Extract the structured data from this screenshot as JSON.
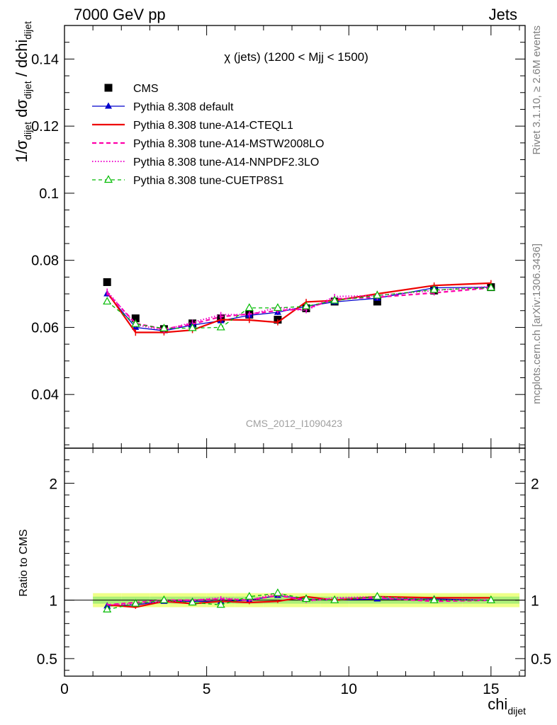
{
  "header": {
    "left": "7000 GeV pp",
    "right": "Jets"
  },
  "side": {
    "rivet": "Rivet 3.1.10, ≥ 2.6M events",
    "mcplots": "mcplots.cern.ch [arXiv:1306.3436]"
  },
  "analysis_id": "CMS_2012_I1090423",
  "chart_data": [
    {
      "type": "line",
      "title": "χ (jets) (1200 < Mjj < 1500)",
      "ylabel": "1/σdijet dσdijet / dchidijet",
      "ylim": [
        0.024,
        0.15
      ],
      "xlim": [
        0,
        16.2
      ],
      "x_ticks": [
        0,
        5,
        10,
        15
      ],
      "y_ticks": [
        0.04,
        0.06,
        0.08,
        0.1,
        0.12,
        0.14
      ],
      "y_tick_labels": [
        "0.04",
        "0.06",
        "0.08",
        "0.1",
        "0.12",
        "0.14"
      ],
      "legend_placement": "top-left",
      "x": [
        1.5,
        2.5,
        3.5,
        4.5,
        5.5,
        6.5,
        7.5,
        8.5,
        9.5,
        11,
        13,
        15
      ],
      "series": [
        {
          "name": "CMS",
          "style": "data",
          "color": "#000000",
          "values": [
            0.0735,
            0.0627,
            0.0595,
            0.0612,
            0.0627,
            0.0638,
            0.0623,
            0.0657,
            0.0677,
            0.0677,
            0.071,
            0.072
          ],
          "errors": [
            0.0007,
            0.0006,
            0.0006,
            0.0006,
            0.0006,
            0.0006,
            0.0006,
            0.0006,
            0.0006,
            0.0006,
            0.0006,
            0.0006
          ]
        },
        {
          "name": "Pythia 8.308 default",
          "style": "default",
          "color": "#0000cc",
          "values": [
            0.07,
            0.06,
            0.059,
            0.0607,
            0.062,
            0.0636,
            0.0645,
            0.0663,
            0.0676,
            0.0687,
            0.0718,
            0.072
          ],
          "errors": [
            0.0008,
            0.0008,
            0.0008,
            0.0008,
            0.0008,
            0.0008,
            0.0008,
            0.0008,
            0.0008,
            0.0008,
            0.0008,
            0.0008
          ]
        },
        {
          "name": "Pythia 8.308 tune-A14-CTEQL1",
          "style": "cteq",
          "color": "#ee0000",
          "values": [
            0.0705,
            0.0585,
            0.0585,
            0.0592,
            0.0623,
            0.0622,
            0.0615,
            0.0676,
            0.068,
            0.07,
            0.0725,
            0.0732
          ],
          "errors": [
            0.0009,
            0.001,
            0.0009,
            0.0009,
            0.0009,
            0.0009,
            0.0009,
            0.0009,
            0.0009,
            0.0009,
            0.0009,
            0.0009
          ]
        },
        {
          "name": "Pythia 8.308 tune-A14-MSTW2008LO",
          "style": "mstw",
          "color": "#ff00aa",
          "values": [
            0.0703,
            0.0612,
            0.0595,
            0.061,
            0.0632,
            0.064,
            0.065,
            0.0655,
            0.0685,
            0.069,
            0.0703,
            0.0718
          ],
          "errors": [
            0.0008,
            0.0008,
            0.0008,
            0.0008,
            0.0008,
            0.0008,
            0.0008,
            0.0008,
            0.0008,
            0.0008,
            0.0008,
            0.0008
          ]
        },
        {
          "name": "Pythia 8.308 tune-A14-NNPDF2.3LO",
          "style": "nnpdf",
          "color": "#ee00cc",
          "values": [
            0.0708,
            0.0608,
            0.0592,
            0.0615,
            0.0638,
            0.0638,
            0.066,
            0.065,
            0.0692,
            0.0695,
            0.071,
            0.0722
          ],
          "errors": [
            0.0008,
            0.0008,
            0.0008,
            0.0008,
            0.0008,
            0.0008,
            0.0008,
            0.0008,
            0.0008,
            0.0008,
            0.0008,
            0.0008
          ]
        },
        {
          "name": "Pythia 8.308 tune-CUETP8S1",
          "style": "cuetp",
          "color": "#00bb00",
          "values": [
            0.0677,
            0.061,
            0.0597,
            0.0598,
            0.06,
            0.0658,
            0.0658,
            0.0663,
            0.068,
            0.0695,
            0.0712,
            0.0718
          ],
          "errors": [
            0.0008,
            0.0008,
            0.0008,
            0.0008,
            0.0008,
            0.0008,
            0.0008,
            0.0008,
            0.0008,
            0.0008,
            0.0008,
            0.0008
          ]
        }
      ]
    },
    {
      "type": "line",
      "ylabel": "Ratio to CMS",
      "xlabel": "chidijet",
      "ylim": [
        0.35,
        2.3
      ],
      "xlim": [
        0,
        16.2
      ],
      "x_ticks": [
        0,
        5,
        10,
        15
      ],
      "x_tick_labels": [
        "0",
        "5",
        "10",
        "15"
      ],
      "y_ticks": [
        0.5,
        1,
        2
      ],
      "y_tick_labels": [
        "0.5",
        "1",
        "2"
      ],
      "band_bins": [
        1,
        2,
        3,
        4,
        5,
        6,
        7,
        8,
        9,
        10,
        12,
        14,
        16
      ],
      "band_inner": 0.03,
      "band_outer": 0.06,
      "x": [
        1.5,
        2.5,
        3.5,
        4.5,
        5.5,
        6.5,
        7.5,
        8.5,
        9.5,
        11,
        13,
        15
      ],
      "series": [
        {
          "name": "Pythia 8.308 default",
          "style": "default",
          "color": "#0000cc",
          "values": [
            0.95,
            0.96,
            0.99,
            0.99,
            0.99,
            1.0,
            1.04,
            1.01,
            1.0,
            1.01,
            1.01,
            1.0
          ]
        },
        {
          "name": "Pythia 8.308 tune-A14-CTEQL1",
          "style": "cteq",
          "color": "#ee0000",
          "values": [
            0.96,
            0.94,
            0.99,
            0.97,
            0.99,
            0.98,
            0.99,
            1.03,
            1.0,
            1.03,
            1.02,
            1.02
          ]
        },
        {
          "name": "Pythia 8.308 tune-A14-MSTW2008LO",
          "style": "mstw",
          "color": "#ff00aa",
          "values": [
            0.96,
            0.98,
            1.0,
            1.0,
            1.01,
            1.0,
            1.04,
            1.0,
            1.01,
            1.02,
            0.99,
            1.0
          ]
        },
        {
          "name": "Pythia 8.308 tune-A14-NNPDF2.3LO",
          "style": "nnpdf",
          "color": "#ee00cc",
          "values": [
            0.96,
            0.97,
            0.99,
            1.0,
            1.02,
            1.0,
            1.06,
            0.99,
            1.02,
            1.03,
            1.0,
            1.0
          ]
        },
        {
          "name": "Pythia 8.308 tune-CUETP8S1",
          "style": "cuetp",
          "color": "#00bb00",
          "values": [
            0.92,
            0.97,
            1.0,
            0.98,
            0.96,
            1.03,
            1.06,
            1.01,
            1.0,
            1.03,
            1.0,
            1.0
          ]
        }
      ]
    }
  ]
}
